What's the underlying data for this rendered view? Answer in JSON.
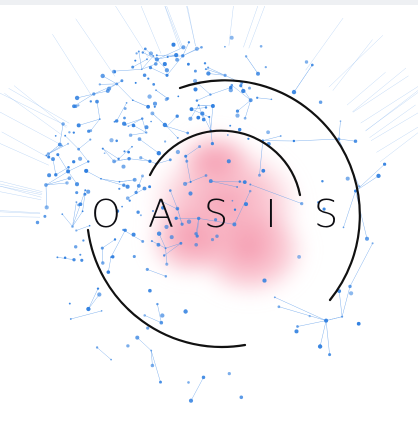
{
  "logo": {
    "letters": [
      "O",
      "A",
      "S",
      "I",
      "S"
    ]
  },
  "colors": {
    "network_blue": "#2f7fe0",
    "network_line": "#5a9ae8",
    "pink_cloud": "#f6a5b6",
    "ring_black": "#111111"
  }
}
